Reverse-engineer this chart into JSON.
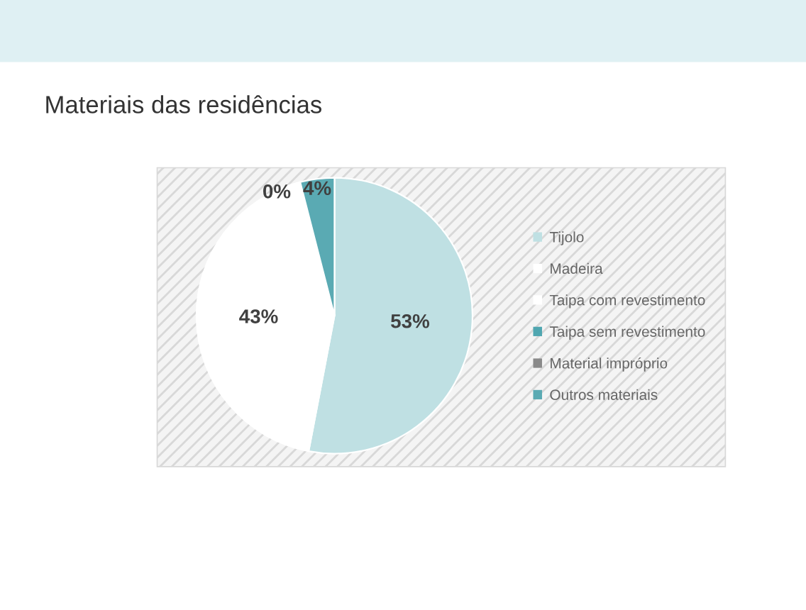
{
  "chart_data": {
    "type": "pie",
    "title": "Materiais das residências",
    "categories": [
      "Tijolo",
      "Madeira",
      "Taipa com revestimento",
      "Taipa sem revestimento",
      "Material impróprio",
      "Outros materiais"
    ],
    "values": [
      53,
      43,
      0,
      0,
      0,
      4
    ],
    "value_labels": [
      "53%",
      "43%",
      null,
      null,
      "0%",
      "4%"
    ],
    "colors": [
      "#bfe0e3",
      "#ffffff",
      "#ffffff",
      "#4fa6b0",
      "#8a8a8a",
      "#5aaab3"
    ],
    "legend": "right"
  }
}
